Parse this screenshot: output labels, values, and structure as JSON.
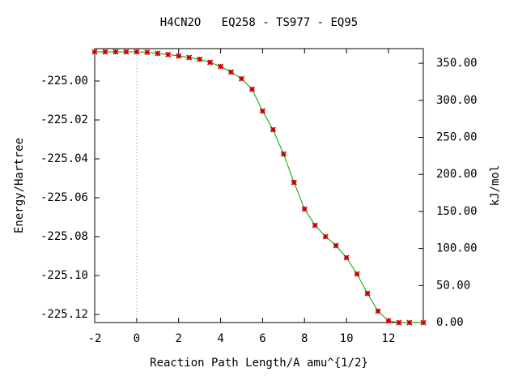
{
  "chart_data": {
    "type": "line",
    "title": "H4CN2O   EQ258 - TS977 - EQ95",
    "xlabel": "Reaction Path Length/A amu^{1/2}",
    "ylabel": "Energy/Hartree",
    "y2label": "kJ/mol",
    "x": [
      -2,
      -1.5,
      -1,
      -0.5,
      0,
      0.5,
      1,
      1.5,
      2,
      2.5,
      3,
      3.5,
      4,
      4.5,
      5,
      5.5,
      6,
      6.5,
      7,
      7.5,
      8,
      8.5,
      9,
      9.5,
      10,
      10.5,
      11,
      11.5,
      12,
      12.5,
      13,
      13.66
    ],
    "series": [
      {
        "name": "EQ258 - TS977 - EQ95",
        "color": "#00a000",
        "marker_color": "#cc0000",
        "values": [
          -224.985,
          -224.985,
          -224.985,
          -224.985,
          -224.985,
          -224.9852,
          -224.9858,
          -224.9864,
          -224.9871,
          -224.9879,
          -224.9888,
          -224.9904,
          -224.9925,
          -224.9954,
          -224.9988,
          -225.0042,
          -225.0154,
          -225.025,
          -225.0375,
          -225.0521,
          -225.0658,
          -225.0742,
          -225.08,
          -225.0846,
          -225.0908,
          -225.0992,
          -225.1092,
          -225.1183,
          -225.1233,
          -225.1242,
          -225.1242,
          -225.1242
        ]
      }
    ],
    "xlim": [
      -2,
      13.66
    ],
    "ylim": [
      -225.12417,
      -224.98333
    ],
    "y2lim": [
      0,
      369.8
    ],
    "xticks": [
      -2,
      0,
      2,
      4,
      6,
      8,
      10,
      12
    ],
    "yticks": [
      {
        "value": -225.12,
        "label": "-225.12"
      },
      {
        "value": -225.1,
        "label": "-225.10"
      },
      {
        "value": -225.08,
        "label": "-225.08"
      },
      {
        "value": -225.06,
        "label": "-225.06"
      },
      {
        "value": -225.04,
        "label": "-225.04"
      },
      {
        "value": -225.02,
        "label": "-225.02"
      },
      {
        "value": -225.0,
        "label": "-225.00"
      }
    ],
    "y2ticks": [
      {
        "value": 0,
        "label": "0.00"
      },
      {
        "value": 50,
        "label": "50.00"
      },
      {
        "value": 100,
        "label": "100.00"
      },
      {
        "value": 150,
        "label": "150.00"
      },
      {
        "value": 200,
        "label": "200.00"
      },
      {
        "value": 250,
        "label": "250.00"
      },
      {
        "value": 300,
        "label": "300.00"
      },
      {
        "value": 350,
        "label": "350.00"
      }
    ],
    "vline_x": 0
  }
}
